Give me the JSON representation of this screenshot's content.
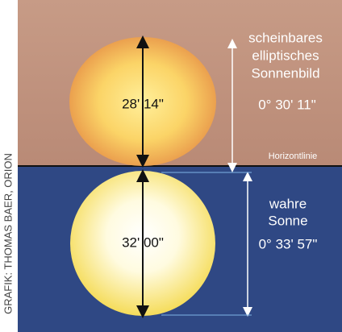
{
  "credit": "GRAFIK: THOMAS BAER, ORION",
  "apparent": {
    "lines": [
      "scheinbares",
      "elliptisches",
      "Sonnenbild"
    ],
    "angle": "0° 30' 11\"",
    "height": "28' 14\""
  },
  "horizon": "Horizontlinie",
  "true_sun": {
    "lines": [
      "wahre",
      "Sonne"
    ],
    "angle": "0° 33' 57\"",
    "height": "32' 00\""
  }
}
